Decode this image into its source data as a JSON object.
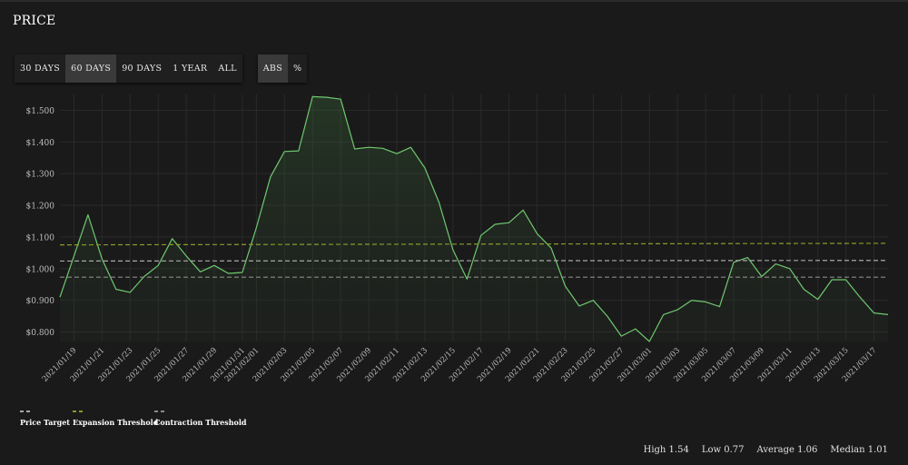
{
  "title": "PRICE",
  "range_buttons": [
    {
      "label": "30 DAYS",
      "active": false
    },
    {
      "label": "60 DAYS",
      "active": true
    },
    {
      "label": "90 DAYS",
      "active": false
    },
    {
      "label": "1 YEAR",
      "active": false
    },
    {
      "label": "ALL",
      "active": false
    }
  ],
  "mode_buttons": [
    {
      "label": "ABS",
      "active": true
    },
    {
      "label": "%",
      "active": false
    }
  ],
  "legend": {
    "price_target": "Price Target",
    "expansion": "Expansion Threshold",
    "contraction": "Contraction Threshold"
  },
  "stats": {
    "high": "High 1.54",
    "low": "Low 0.77",
    "average": "Average 1.06",
    "median": "Median 1.01"
  },
  "colors": {
    "line": "#6fc86f",
    "price_target": "#a8a8a8",
    "expansion": "#8a9a2a",
    "contraction": "#8a8a8a",
    "grid": "#2a2a2a"
  },
  "chart_data": {
    "type": "area",
    "ylim": [
      0.77,
      1.55
    ],
    "yticks": [
      "$0.800",
      "$0.900",
      "$1.000",
      "$1.100",
      "$1.200",
      "$1.300",
      "$1.400",
      "$1.500"
    ],
    "ytick_values": [
      0.8,
      0.9,
      1.0,
      1.1,
      1.2,
      1.3,
      1.4,
      1.5
    ],
    "xticks": [
      "2021/01/19",
      "2021/01/21",
      "2021/01/23",
      "2021/01/25",
      "2021/01/27",
      "2021/01/29",
      "2021/01/31",
      "2021/02/01",
      "2021/02/03",
      "2021/02/05",
      "2021/02/07",
      "2021/02/09",
      "2021/02/11",
      "2021/02/13",
      "2021/02/15",
      "2021/02/17",
      "2021/02/19",
      "2021/02/21",
      "2021/02/23",
      "2021/02/25",
      "2021/02/27",
      "2021/03/01",
      "2021/03/03",
      "2021/03/05",
      "2021/03/07",
      "2021/03/09",
      "2021/03/11",
      "2021/03/13",
      "2021/03/15",
      "2021/03/17"
    ],
    "x": [
      "2021/01/18",
      "2021/01/19",
      "2021/01/20",
      "2021/01/21",
      "2021/01/22",
      "2021/01/23",
      "2021/01/24",
      "2021/01/25",
      "2021/01/26",
      "2021/01/27",
      "2021/01/28",
      "2021/01/29",
      "2021/01/30",
      "2021/01/31",
      "2021/02/01",
      "2021/02/02",
      "2021/02/03",
      "2021/02/04",
      "2021/02/05",
      "2021/02/06",
      "2021/02/07",
      "2021/02/08",
      "2021/02/09",
      "2021/02/10",
      "2021/02/11",
      "2021/02/12",
      "2021/02/13",
      "2021/02/14",
      "2021/02/15",
      "2021/02/16",
      "2021/02/17",
      "2021/02/18",
      "2021/02/19",
      "2021/02/20",
      "2021/02/21",
      "2021/02/22",
      "2021/02/23",
      "2021/02/24",
      "2021/02/25",
      "2021/02/26",
      "2021/02/27",
      "2021/02/28",
      "2021/03/01",
      "2021/03/02",
      "2021/03/03",
      "2021/03/04",
      "2021/03/05",
      "2021/03/06",
      "2021/03/07",
      "2021/03/08",
      "2021/03/09",
      "2021/03/10",
      "2021/03/11",
      "2021/03/12",
      "2021/03/13",
      "2021/03/14",
      "2021/03/15",
      "2021/03/16",
      "2021/03/17",
      "2021/03/18"
    ],
    "series": [
      {
        "values": [
          0.91,
          1.04,
          1.17,
          1.03,
          0.935,
          0.925,
          0.975,
          1.01,
          1.095,
          1.04,
          0.99,
          1.01,
          0.985,
          0.988,
          1.13,
          1.29,
          1.37,
          1.372,
          1.543,
          1.541,
          1.535,
          1.378,
          1.383,
          1.38,
          1.363,
          1.383,
          1.318,
          1.21,
          1.06,
          0.967,
          1.105,
          1.14,
          1.145,
          1.185,
          1.11,
          1.065,
          0.945,
          0.882,
          0.9,
          0.85,
          0.787,
          0.81,
          0.77,
          0.855,
          0.87,
          0.9,
          0.895,
          0.88,
          1.02,
          1.035,
          0.975,
          1.015,
          1.0,
          0.935,
          0.903,
          0.965,
          0.965,
          0.91,
          0.86,
          0.855
        ]
      }
    ],
    "thresholds": {
      "price_target": [
        1.024,
        1.026
      ],
      "expansion": [
        1.075,
        1.08
      ],
      "contraction": [
        0.973,
        0.973
      ]
    }
  }
}
